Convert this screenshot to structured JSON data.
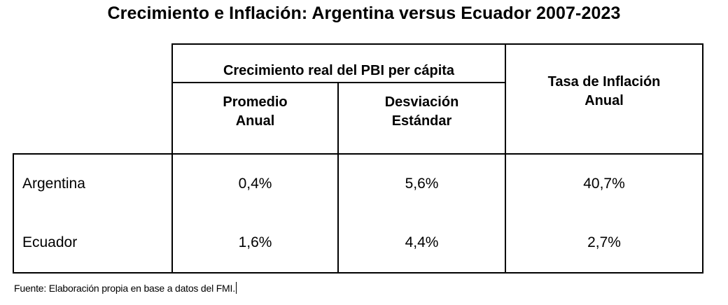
{
  "document": {
    "title": "Crecimiento e Inflación: Argentina versus Ecuador 2007-2023",
    "table": {
      "group_header": "Crecimiento real del PBI per cápita",
      "sub_headers": {
        "mean_line1": "Promedio",
        "mean_line2": "Anual",
        "sd_line1": "Desviación",
        "sd_line2": "Estándar"
      },
      "inflation_header": {
        "line1": "Tasa de Inflación",
        "line2": "Anual"
      },
      "rows": [
        {
          "country": "Argentina",
          "mean": "0,4%",
          "sd": "5,6%",
          "inflation": "40,7%"
        },
        {
          "country": "Ecuador",
          "mean": "1,6%",
          "sd": "4,4%",
          "inflation": "2,7%"
        }
      ]
    },
    "source": "Fuente: Elaboración propia en base a datos del FMI."
  }
}
